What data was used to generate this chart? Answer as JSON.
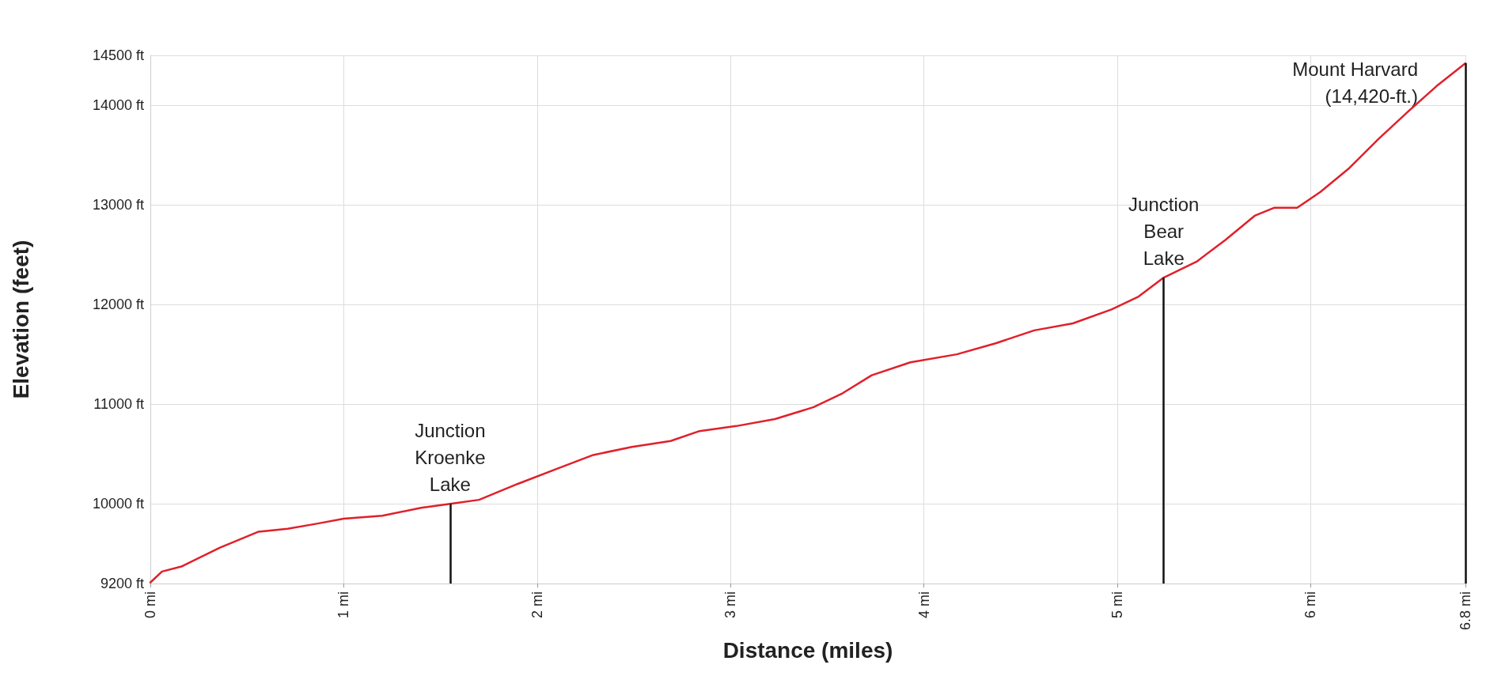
{
  "chart_data": {
    "type": "line",
    "xlabel": "Distance (miles)",
    "ylabel": "Elevation (feet)",
    "x": [
      0,
      0.06,
      0.16,
      0.36,
      0.56,
      0.71,
      0.86,
      1.0,
      1.2,
      1.4,
      1.55,
      1.7,
      1.9,
      2.1,
      2.29,
      2.49,
      2.69,
      2.84,
      3.03,
      3.23,
      3.43,
      3.58,
      3.73,
      3.93,
      4.17,
      4.37,
      4.57,
      4.77,
      4.97,
      5.11,
      5.24,
      5.41,
      5.56,
      5.71,
      5.81,
      5.93,
      6.05,
      6.2,
      6.35,
      6.5,
      6.65,
      6.8
    ],
    "series": [
      {
        "color": "#e0202a",
        "values": [
          9210,
          9320,
          9370,
          9560,
          9720,
          9750,
          9800,
          9850,
          9880,
          9960,
          10000,
          10040,
          10200,
          10350,
          10490,
          10570,
          10630,
          10730,
          10780,
          10850,
          10970,
          11110,
          11290,
          11420,
          11500,
          11610,
          11740,
          11810,
          11950,
          12080,
          12270,
          12430,
          12650,
          12890,
          12970,
          12970,
          13130,
          13370,
          13660,
          13930,
          14190,
          14420
        ]
      }
    ],
    "xlim": [
      0,
      6.8
    ],
    "xticks": [
      {
        "value": 0,
        "label": "0 mi"
      },
      {
        "value": 1,
        "label": "1 mi"
      },
      {
        "value": 2,
        "label": "2 mi"
      },
      {
        "value": 3,
        "label": "3 mi"
      },
      {
        "value": 4,
        "label": "4 mi"
      },
      {
        "value": 5,
        "label": "5 mi"
      },
      {
        "value": 6,
        "label": "6 mi"
      },
      {
        "value": 6.8,
        "label": "6.8 mi"
      }
    ],
    "ylim": [
      9200,
      14500
    ],
    "yticks": [
      {
        "value": 9200,
        "label": "9200 ft"
      },
      {
        "value": 10000,
        "label": "10000 ft"
      },
      {
        "value": 11000,
        "label": "11000 ft"
      },
      {
        "value": 12000,
        "label": "12000 ft"
      },
      {
        "value": 13000,
        "label": "13000 ft"
      },
      {
        "value": 14000,
        "label": "14000 ft"
      },
      {
        "value": 14500,
        "label": "14500 ft"
      }
    ],
    "annotations": [
      {
        "text": "Junction\nKroenke\nLake",
        "x": 1.55,
        "y": 10000
      },
      {
        "text": "Junction\nBear\nLake",
        "x": 5.24,
        "y": 12270
      },
      {
        "text": "Mount Harvard\n(14,420-ft.)",
        "x": 6.8,
        "y": 14420
      }
    ],
    "grid": true,
    "marker": "none",
    "line_style": "solid"
  }
}
